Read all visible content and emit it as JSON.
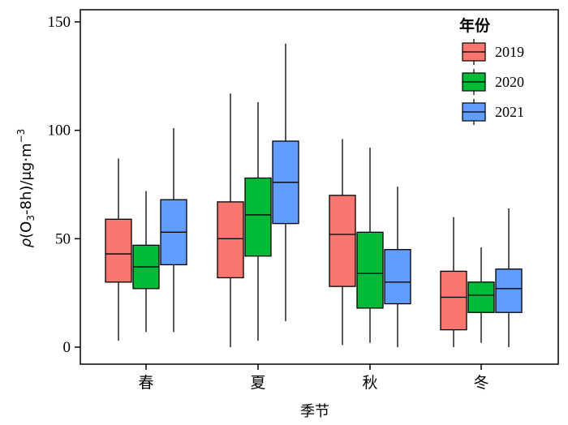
{
  "chart_data": {
    "type": "boxplot",
    "title": "",
    "xlabel": "季节",
    "ylabel_parts": [
      "ρ",
      "(O",
      "3",
      "-8h)/μg·m",
      "−3"
    ],
    "categories": [
      "春",
      "夏",
      "秋",
      "冬"
    ],
    "ylim": [
      0,
      150
    ],
    "yticks": [
      0,
      50,
      100,
      150
    ],
    "legend": {
      "title": "年份",
      "position": "top-right"
    },
    "series": [
      {
        "name": "2019",
        "color": "#F8766D",
        "boxes": [
          {
            "min": 3,
            "q1": 30,
            "median": 43,
            "q3": 59,
            "max": 87
          },
          {
            "min": 0,
            "q1": 32,
            "median": 50,
            "q3": 67,
            "max": 117
          },
          {
            "min": 1,
            "q1": 28,
            "median": 52,
            "q3": 70,
            "max": 96
          },
          {
            "min": 0,
            "q1": 8,
            "median": 23,
            "q3": 35,
            "max": 60
          }
        ]
      },
      {
        "name": "2020",
        "color": "#00BA38",
        "boxes": [
          {
            "min": 7,
            "q1": 27,
            "median": 37,
            "q3": 47,
            "max": 72
          },
          {
            "min": 3,
            "q1": 42,
            "median": 61,
            "q3": 78,
            "max": 113
          },
          {
            "min": 2,
            "q1": 18,
            "median": 34,
            "q3": 53,
            "max": 92
          },
          {
            "min": 2,
            "q1": 16,
            "median": 24,
            "q3": 30,
            "max": 46
          }
        ]
      },
      {
        "name": "2021",
        "color": "#619CFF",
        "boxes": [
          {
            "min": 7,
            "q1": 38,
            "median": 53,
            "q3": 68,
            "max": 101
          },
          {
            "min": 12,
            "q1": 57,
            "median": 76,
            "q3": 95,
            "max": 140
          },
          {
            "min": 0,
            "q1": 20,
            "median": 30,
            "q3": 45,
            "max": 74
          },
          {
            "min": 0,
            "q1": 16,
            "median": 27,
            "q3": 36,
            "max": 64
          }
        ]
      }
    ]
  }
}
